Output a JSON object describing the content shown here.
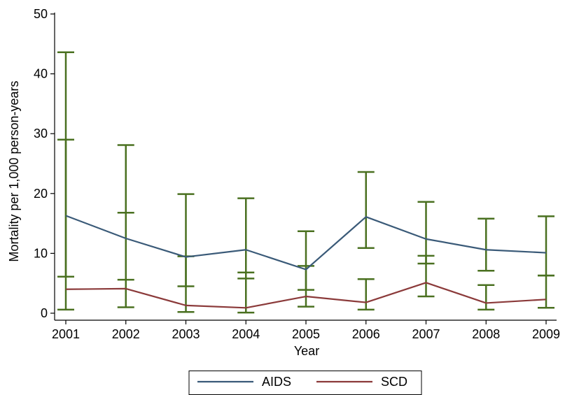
{
  "chart_data": {
    "type": "line",
    "xlabel": "Year",
    "ylabel": "Mortality per 1,000 person-years",
    "x": [
      2001,
      2002,
      2003,
      2004,
      2005,
      2006,
      2007,
      2008,
      2009
    ],
    "xticks": [
      "2001",
      "2002",
      "2003",
      "2004",
      "2005",
      "2006",
      "2007",
      "2008",
      "2009"
    ],
    "ylim": [
      0,
      50
    ],
    "yticks": [
      0,
      10,
      20,
      30,
      40,
      50
    ],
    "grid": false,
    "legend": "bottom",
    "series": [
      {
        "name": "AIDS",
        "color": "#3a5a78",
        "values": [
          16.3,
          12.5,
          9.4,
          10.6,
          7.3,
          16.1,
          12.4,
          10.6,
          10.1
        ],
        "ci_low": [
          6.1,
          5.6,
          4.5,
          5.8,
          3.9,
          10.9,
          8.3,
          7.1,
          6.3
        ],
        "ci_high": [
          43.6,
          28.1,
          19.9,
          19.2,
          13.7,
          23.6,
          18.6,
          15.8,
          16.2
        ]
      },
      {
        "name": "SCD",
        "color": "#8b3a3a",
        "values": [
          4.0,
          4.1,
          1.3,
          0.9,
          2.8,
          1.8,
          5.1,
          1.7,
          2.3
        ],
        "ci_low": [
          0.6,
          1.0,
          0.2,
          0.1,
          1.1,
          0.6,
          2.8,
          0.6,
          0.9
        ],
        "ci_high": [
          29.0,
          16.8,
          9.5,
          6.8,
          7.9,
          5.7,
          9.6,
          4.7,
          6.3
        ]
      }
    ],
    "errorbar_color": "#4a7020"
  }
}
